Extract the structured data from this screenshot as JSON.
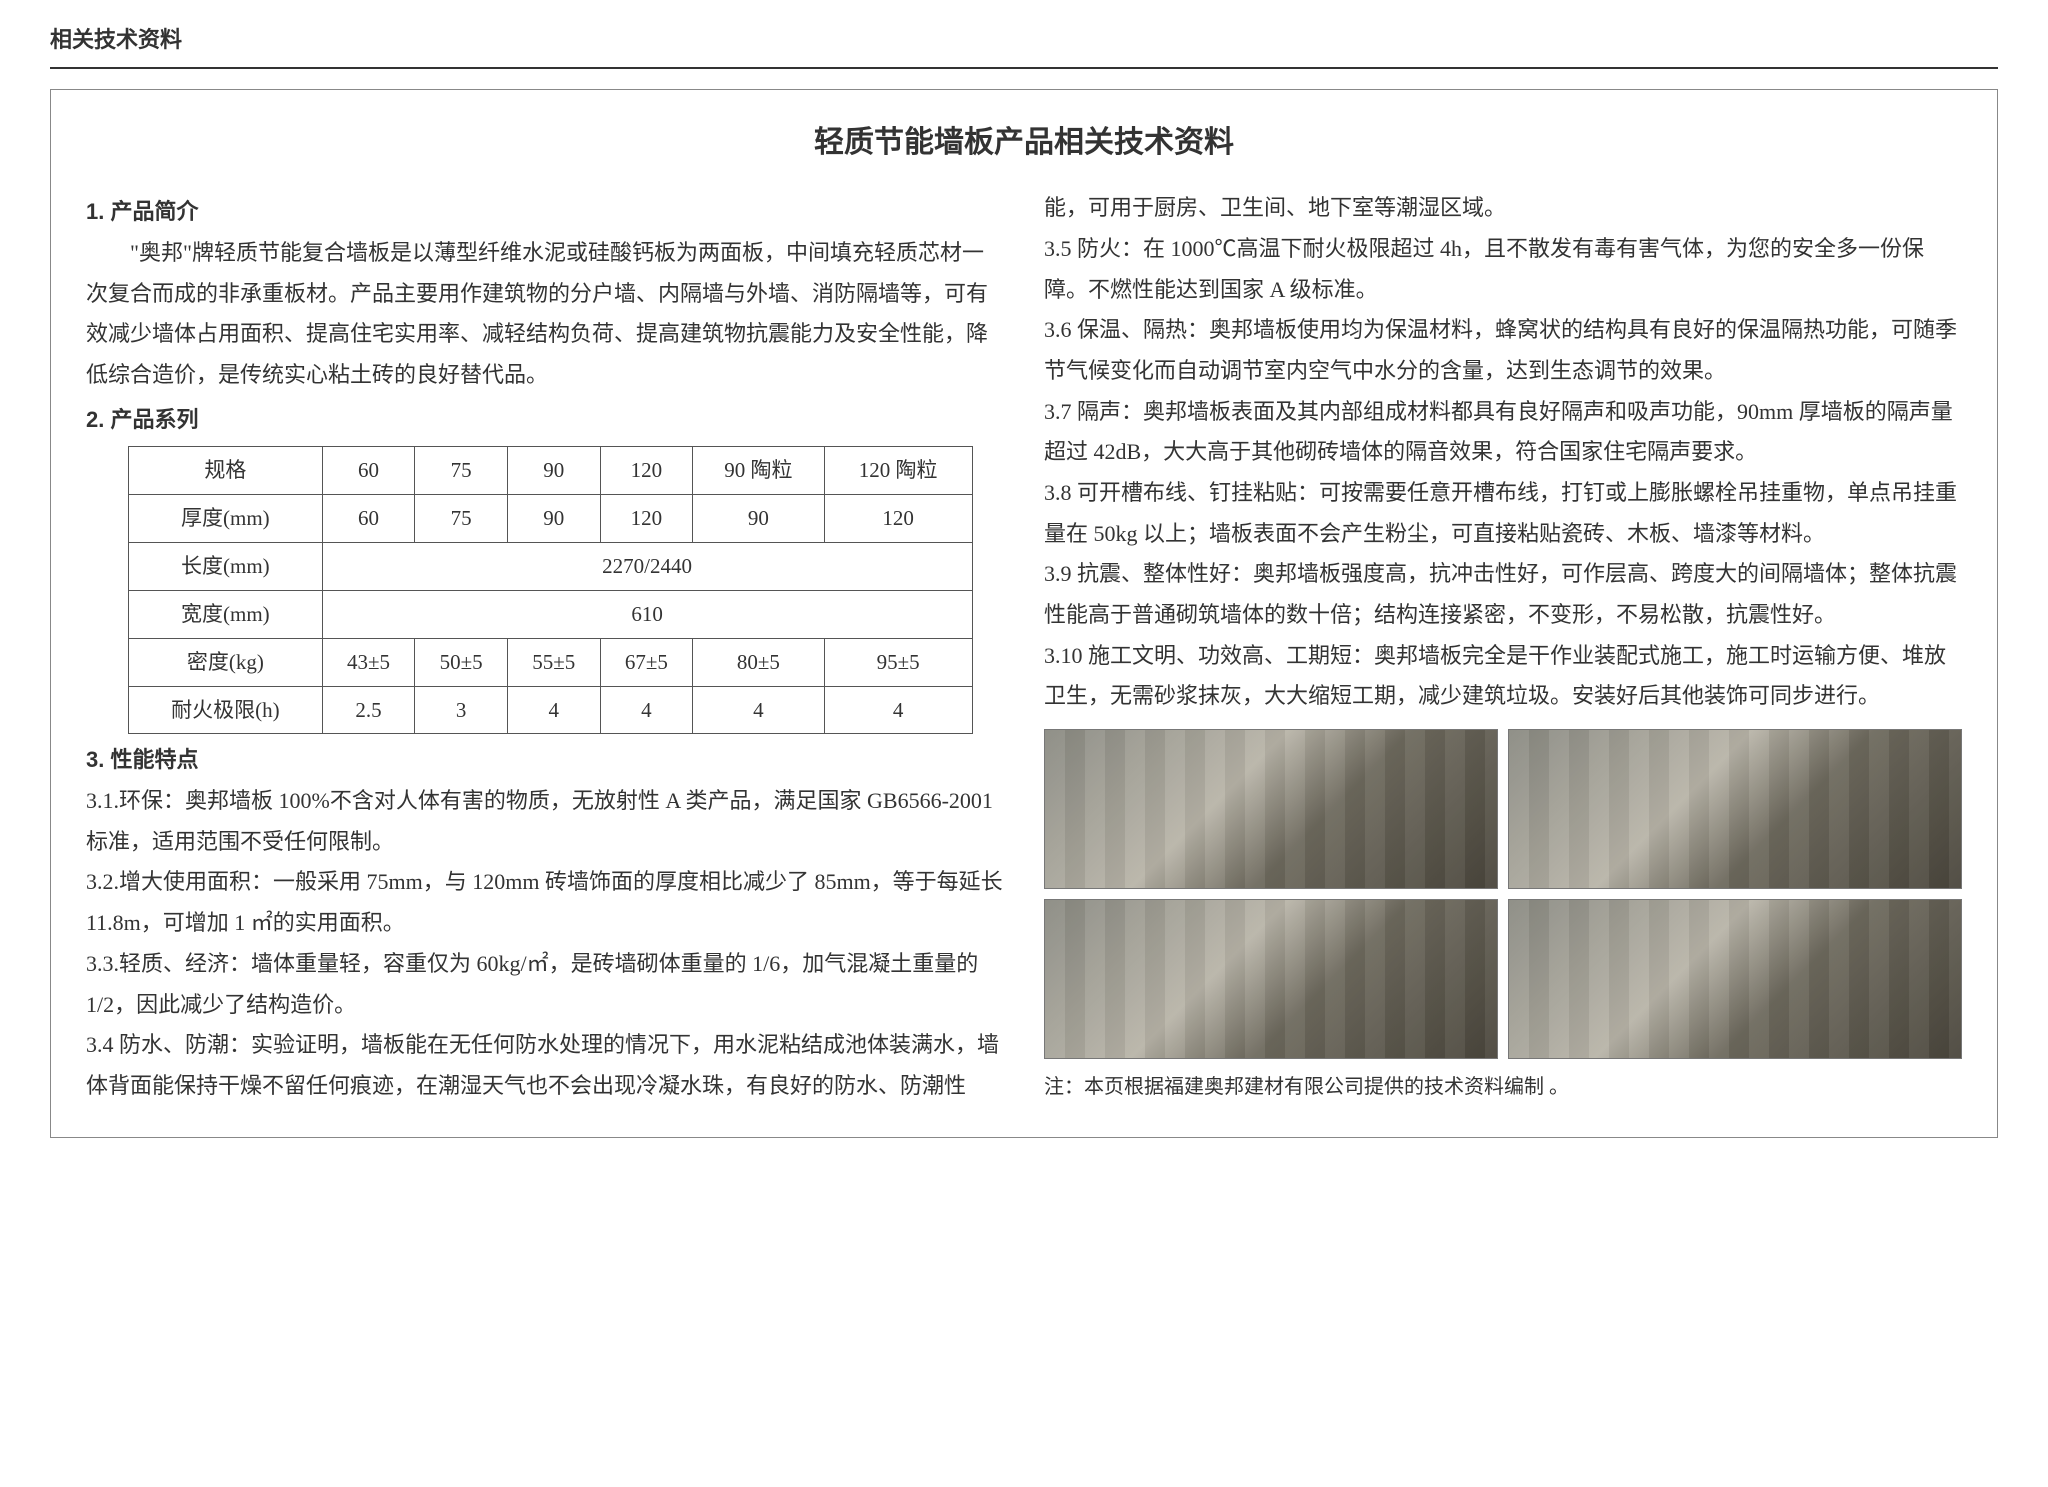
{
  "pageHeader": "相关技术资料",
  "mainTitle": "轻质节能墙板产品相关技术资料",
  "sections": {
    "s1": {
      "heading": "1. 产品简介",
      "body": "\"奥邦\"牌轻质节能复合墙板是以薄型纤维水泥或硅酸钙板为两面板，中间填充轻质芯材一次复合而成的非承重板材。产品主要用作建筑物的分户墙、内隔墙与外墙、消防隔墙等，可有效减少墙体占用面积、提高住宅实用率、减轻结构负荷、提高建筑物抗震能力及安全性能，降低综合造价，是传统实心粘土砖的良好替代品。"
    },
    "s2": {
      "heading": "2. 产品系列"
    },
    "s3": {
      "heading": "3. 性能特点"
    }
  },
  "table": {
    "rowLabels": [
      "规格",
      "厚度(mm)",
      "长度(mm)",
      "宽度(mm)",
      "密度(kg)",
      "耐火极限(h)"
    ],
    "spec": [
      "60",
      "75",
      "90",
      "120",
      "90 陶粒",
      "120 陶粒"
    ],
    "thick": [
      "60",
      "75",
      "90",
      "120",
      "90",
      "120"
    ],
    "length": "2270/2440",
    "width": "610",
    "density": [
      "43±5",
      "50±5",
      "55±5",
      "67±5",
      "80±5",
      "95±5"
    ],
    "fire": [
      "2.5",
      "3",
      "4",
      "4",
      "4",
      "4"
    ]
  },
  "features": {
    "f31": "3.1.环保：奥邦墙板 100%不含对人体有害的物质，无放射性 A 类产品，满足国家 GB6566-2001 标准，适用范围不受任何限制。",
    "f32": "3.2.增大使用面积：一般采用 75mm，与 120mm 砖墙饰面的厚度相比减少了 85mm，等于每延长 11.8m，可增加 1 ㎡的实用面积。",
    "f33": "3.3.轻质、经济：墙体重量轻，容重仅为 60kg/㎡，是砖墙砌体重量的 1/6，加气混凝土重量的 1/2，因此减少了结构造价。",
    "f34": "3.4 防水、防潮：实验证明，墙板能在无任何防水处理的情况下，用水泥粘结成池体装满水，墙体背面能保持干燥不留任何痕迹，在潮湿天气也不会出现冷凝水珠，有良好的防水、防潮性能，可用于厨房、卫生间、地下室等潮湿区域。",
    "f35": "3.5 防火：在 1000℃高温下耐火极限超过 4h，且不散发有毒有害气体，为您的安全多一份保障。不燃性能达到国家 A 级标准。",
    "f36": "3.6 保温、隔热：奥邦墙板使用均为保温材料，蜂窝状的结构具有良好的保温隔热功能，可随季节气候变化而自动调节室内空气中水分的含量，达到生态调节的效果。",
    "f37": "3.7 隔声：奥邦墙板表面及其内部组成材料都具有良好隔声和吸声功能，90mm 厚墙板的隔声量超过 42dB，大大高于其他砌砖墙体的隔音效果，符合国家住宅隔声要求。",
    "f38": "3.8 可开槽布线、钉挂粘贴：可按需要任意开槽布线，打钉或上膨胀螺栓吊挂重物，单点吊挂重量在 50kg 以上；墙板表面不会产生粉尘，可直接粘贴瓷砖、木板、墙漆等材料。",
    "f39": "3.9 抗震、整体性好：奥邦墙板强度高，抗冲击性好，可作层高、跨度大的间隔墙体；整体抗震性能高于普通砌筑墙体的数十倍；结构连接紧密，不变形，不易松散，抗震性好。",
    "f310": "3.10 施工文明、功效高、工期短：奥邦墙板完全是干作业装配式施工，施工时运输方便、堆放卫生，无需砂浆抹灰，大大缩短工期，减少建筑垃圾。安装好后其他装饰可同步进行。"
  },
  "note": "注：本页根据福建奥邦建材有限公司提供的技术资料编制 。",
  "images": [
    "product-boxes",
    "stacked-panels",
    "workers-installing",
    "wall-installed"
  ]
}
